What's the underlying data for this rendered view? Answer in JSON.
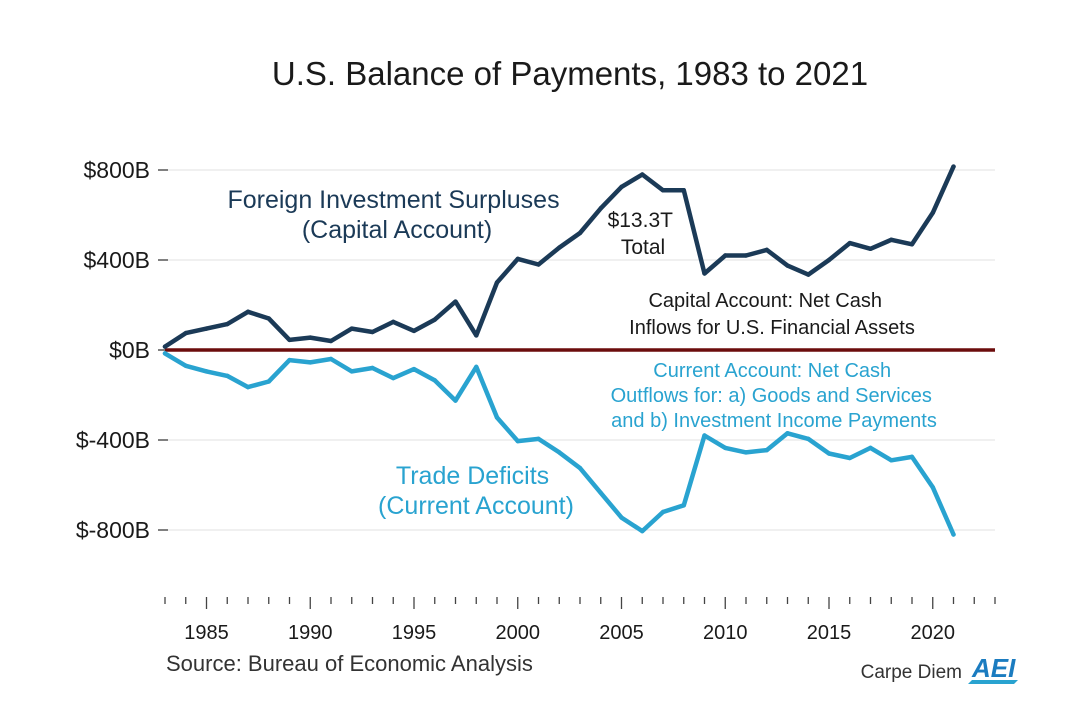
{
  "chart_data": {
    "type": "line",
    "title": "U.S. Balance of Payments, 1983 to 2021",
    "x": [
      1983,
      1984,
      1985,
      1986,
      1987,
      1988,
      1989,
      1990,
      1991,
      1992,
      1993,
      1994,
      1995,
      1996,
      1997,
      1998,
      1999,
      2000,
      2001,
      2002,
      2003,
      2004,
      2005,
      2006,
      2007,
      2008,
      2009,
      2010,
      2011,
      2012,
      2013,
      2014,
      2015,
      2016,
      2017,
      2018,
      2019,
      2020,
      2021
    ],
    "series": [
      {
        "name": "Foreign Investment Surpluses (Capital Account)",
        "color": "#1b3a57",
        "values": [
          15,
          75,
          95,
          115,
          170,
          140,
          45,
          55,
          40,
          95,
          80,
          125,
          85,
          135,
          215,
          65,
          300,
          405,
          380,
          455,
          520,
          630,
          725,
          780,
          710,
          710,
          340,
          420,
          420,
          445,
          375,
          335,
          400,
          475,
          450,
          490,
          470,
          610,
          815
        ]
      },
      {
        "name": "Trade Deficits (Current Account)",
        "color": "#29a3d0",
        "values": [
          -15,
          -70,
          -95,
          -115,
          -165,
          -140,
          -45,
          -55,
          -40,
          -95,
          -80,
          -125,
          -85,
          -135,
          -225,
          -75,
          -300,
          -405,
          -395,
          -455,
          -525,
          -635,
          -745,
          -805,
          -720,
          -690,
          -380,
          -435,
          -455,
          -445,
          -370,
          -395,
          -460,
          -480,
          -435,
          -490,
          -475,
          -610,
          -820
        ]
      }
    ],
    "zero_line_color": "#6b0c0c",
    "ylim": [
      -900,
      900
    ],
    "yticks": [
      -800,
      -400,
      0,
      400,
      800
    ],
    "ytick_labels": [
      "$-800B",
      "$-400B",
      "$0B",
      "$400B",
      "$800B"
    ],
    "xlim": [
      1983,
      2023
    ],
    "xtick_labels": [
      "1985",
      "1990",
      "1995",
      "2000",
      "2005",
      "2010",
      "2015",
      "2020"
    ],
    "grid": true,
    "annotations": {
      "capital_title": [
        "Foreign Investment Surpluses",
        "(Capital Account)"
      ],
      "total": [
        "$13.3T",
        "Total"
      ],
      "capital_desc": [
        "Capital Account: Net Cash",
        "Inflows for U.S. Financial Assets"
      ],
      "current_desc": [
        "Current Account: Net Cash",
        "Outflows for: a) Goods and Services",
        "and b) Investment Income Payments"
      ],
      "current_title": [
        "Trade Deficits",
        "(Current Account)"
      ]
    },
    "source": "Source: Bureau of Economic Analysis",
    "brand": "Carpe Diem",
    "logo": "AEI"
  }
}
